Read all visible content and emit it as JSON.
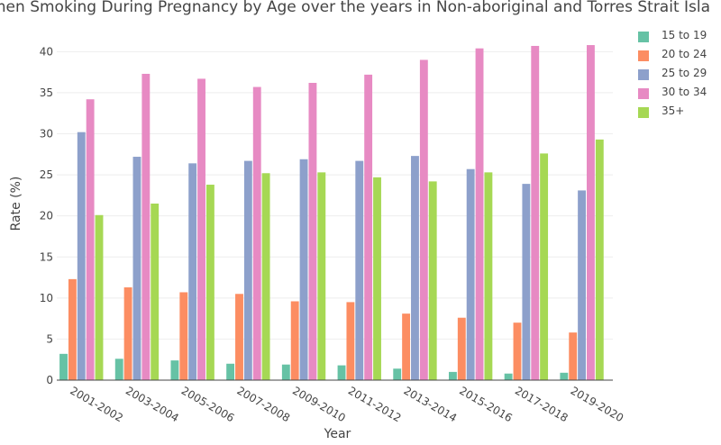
{
  "chart_data": {
    "type": "bar",
    "title": "men Smoking During Pregnancy by Age over the years in Non-aboriginal and Torres Strait Isla",
    "xlabel": "Year",
    "ylabel": "Rate (%)",
    "ylim": [
      0,
      43
    ],
    "yticks": [
      "0",
      "5",
      "10",
      "15",
      "20",
      "25",
      "30",
      "35",
      "40"
    ],
    "grid": "horizontal",
    "legend_position": "top-right",
    "categories": [
      "2001-2002",
      "2003-2004",
      "2005-2006",
      "2007-2008",
      "2009-2010",
      "2011-2012",
      "2013-2014",
      "2015-2016",
      "2017-2018",
      "2019-2020"
    ],
    "series": [
      {
        "name": "15 to 19",
        "color": "#66c2a5",
        "values": [
          3.2,
          2.6,
          2.4,
          2.0,
          1.9,
          1.8,
          1.4,
          1.0,
          0.8,
          0.9
        ]
      },
      {
        "name": "20 to 24",
        "color": "#fc8d62",
        "values": [
          12.3,
          11.3,
          10.7,
          10.5,
          9.6,
          9.5,
          8.1,
          7.6,
          7.0,
          5.8
        ]
      },
      {
        "name": "25 to 29",
        "color": "#8da0cb",
        "values": [
          30.2,
          27.2,
          26.4,
          26.7,
          26.9,
          26.7,
          27.3,
          25.7,
          23.9,
          23.1
        ]
      },
      {
        "name": "30 to 34",
        "color": "#e78ac3",
        "values": [
          34.2,
          37.3,
          36.7,
          35.7,
          36.2,
          37.2,
          39.0,
          40.4,
          40.7,
          40.8
        ]
      },
      {
        "name": "35+",
        "color": "#a6d854",
        "values": [
          20.1,
          21.5,
          23.8,
          25.2,
          25.3,
          24.7,
          24.2,
          25.3,
          27.6,
          29.3
        ]
      }
    ]
  }
}
